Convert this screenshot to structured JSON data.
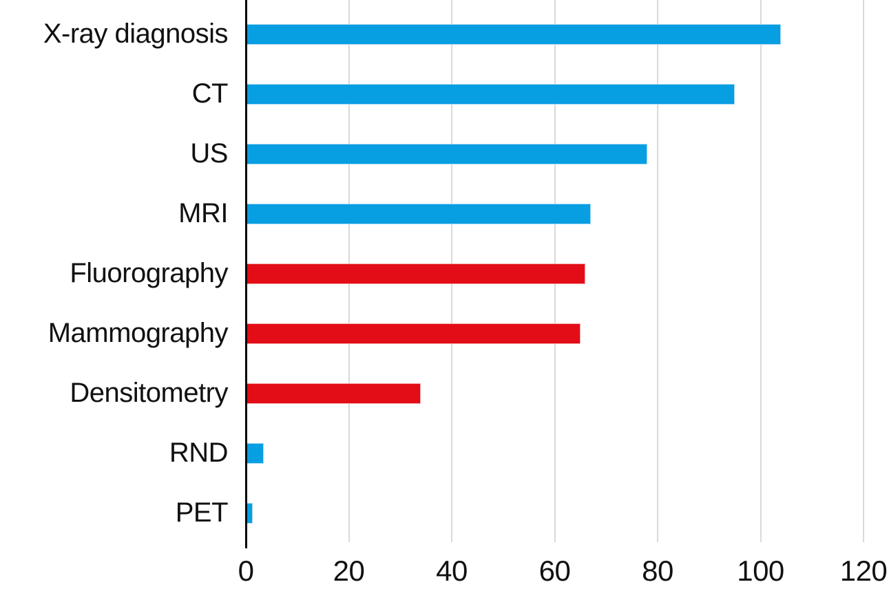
{
  "chart_data": {
    "type": "bar",
    "orientation": "horizontal",
    "title": "",
    "xlabel": "",
    "ylabel": "",
    "categories": [
      "X-ray diagnosis",
      "CT",
      "US",
      "MRI",
      "Fluorography",
      "Mammography",
      "Densitometry",
      "RND",
      "PET"
    ],
    "values": [
      104,
      95,
      78,
      67,
      66,
      65,
      34,
      3.5,
      1.3
    ],
    "bar_color_keys": [
      "blue",
      "blue",
      "blue",
      "blue",
      "red",
      "red",
      "red",
      "blue",
      "blue"
    ],
    "colors": {
      "blue": "#089ee2",
      "blue_border": "#a8daf4",
      "red": "#e20d16",
      "red_border": "#f4a8ac"
    },
    "x_ticks": [
      0,
      20,
      40,
      60,
      80,
      100,
      120
    ],
    "xlim": [
      0,
      120
    ],
    "grid": "vertical-only",
    "gridline_color": "#d9d9d9",
    "axis_color": "#000000",
    "background_color": "#ffffff",
    "legend": "none"
  }
}
